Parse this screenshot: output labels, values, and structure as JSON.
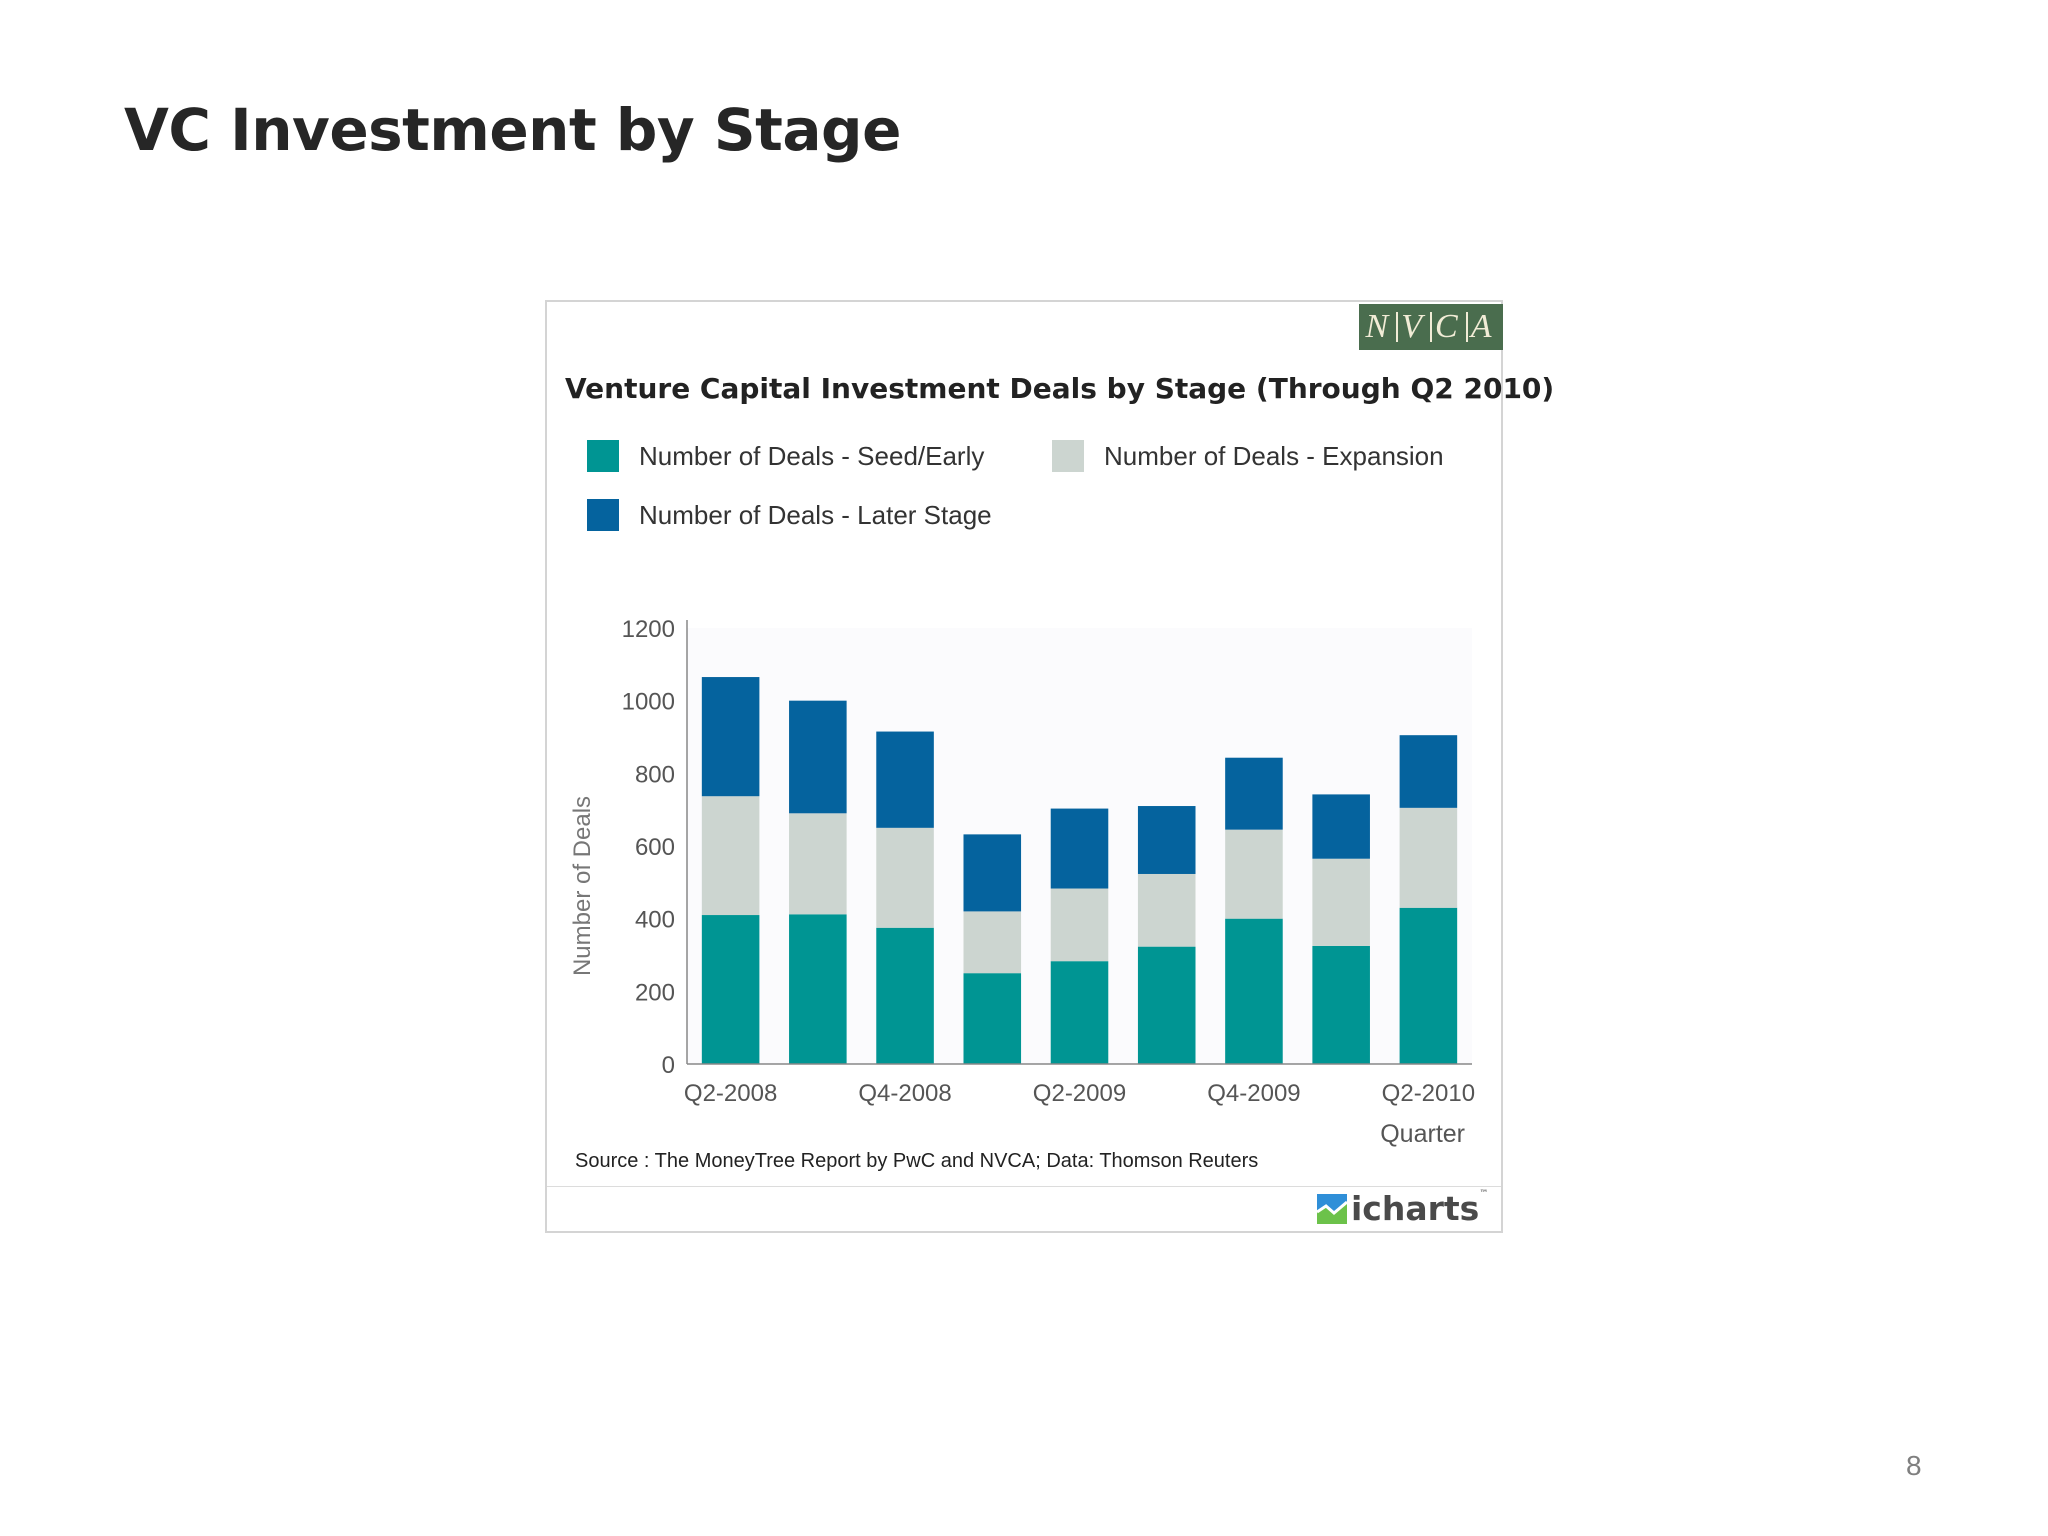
{
  "slide": {
    "title": "VC Investment by Stage",
    "page_number": "8"
  },
  "logo": {
    "letters": [
      "N",
      "V",
      "C",
      "A"
    ],
    "background": "#4a6d4e"
  },
  "brand": {
    "name": "icharts",
    "trademark": "™",
    "icon": "icharts-logo-icon"
  },
  "source": "Source : The MoneyTree Report by PwC and NVCA; Data: Thomson Reuters",
  "chart_data": {
    "type": "bar",
    "stacked": true,
    "title": "Venture Capital Investment Deals by Stage (Through Q2 2010)",
    "xlabel": "Quarter",
    "ylabel": "Number of Deals",
    "ylim": [
      0,
      1200
    ],
    "yticks": [
      0,
      200,
      400,
      600,
      800,
      1000,
      1200
    ],
    "categories": [
      "Q2-2008",
      "Q3-2008",
      "Q4-2008",
      "Q1-2009",
      "Q2-2009",
      "Q3-2009",
      "Q4-2009",
      "Q1-2010",
      "Q2-2010"
    ],
    "category_tick_labels": [
      "Q2-2008",
      "",
      "Q4-2008",
      "",
      "Q2-2009",
      "",
      "Q4-2009",
      "",
      "Q2-2010"
    ],
    "series": [
      {
        "name": "Number of Deals - Seed/Early",
        "color": "#009593",
        "values": [
          410,
          412,
          375,
          250,
          283,
          323,
          400,
          325,
          430
        ]
      },
      {
        "name": "Number of Deals - Expansion",
        "color": "#ccd5d0",
        "values": [
          327,
          278,
          275,
          170,
          200,
          200,
          245,
          240,
          275
        ]
      },
      {
        "name": "Number of Deals - Later Stage",
        "color": "#05639e",
        "values": [
          328,
          310,
          265,
          212,
          220,
          187,
          198,
          177,
          200
        ]
      }
    ],
    "grid": false,
    "legend_position": "top"
  }
}
